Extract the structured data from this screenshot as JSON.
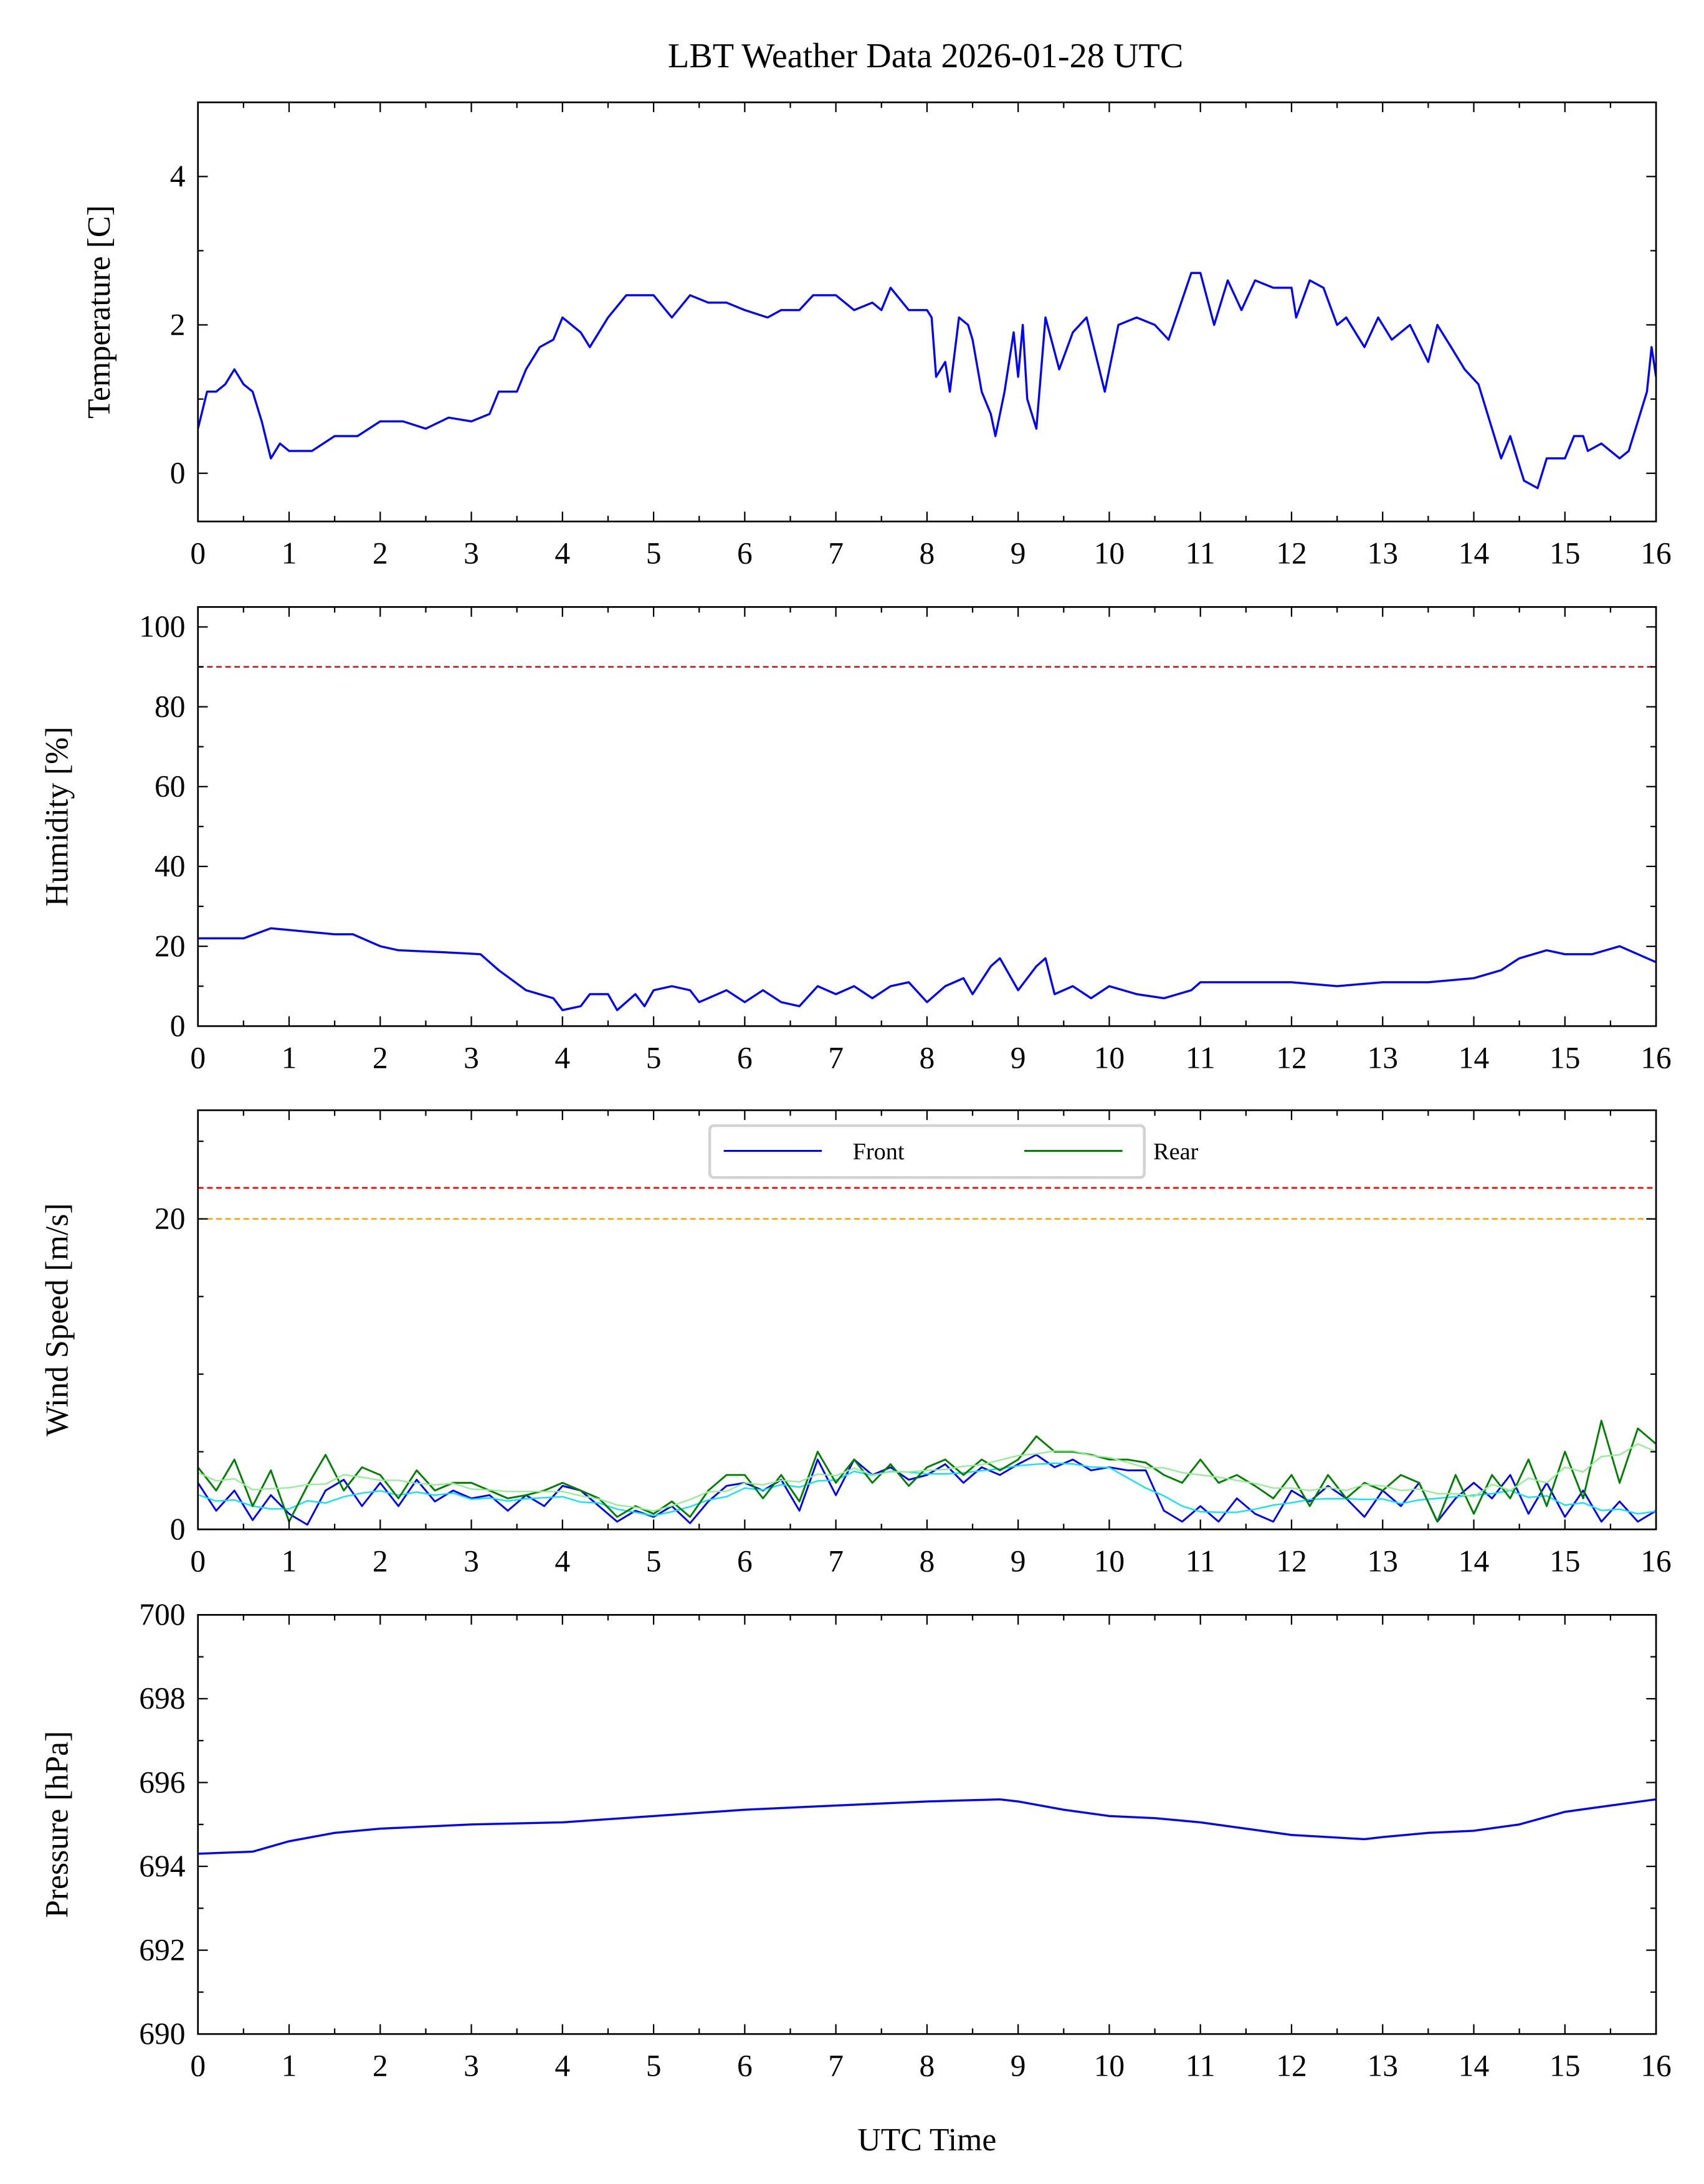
{
  "chart_data": {
    "title": "LBT Weather Data 2026-01-28 UTC",
    "xlabel": "UTC Time",
    "xlim": [
      0,
      16
    ],
    "x_ticks": [
      0,
      1,
      2,
      3,
      4,
      5,
      6,
      7,
      8,
      9,
      10,
      11,
      12,
      13,
      14,
      15,
      16
    ],
    "panels": [
      {
        "id": "temperature",
        "type": "line",
        "ylabel": "Temperature [C]",
        "ylim": [
          -0.65,
          5
        ],
        "y_ticks": [
          0,
          2,
          4
        ],
        "y_minor_step": 1,
        "series": [
          {
            "name": "Temperature",
            "color": "#0000ff",
            "x": [
              0,
              0.1,
              0.2,
              0.3,
              0.4,
              0.5,
              0.6,
              0.7,
              0.8,
              0.9,
              1.0,
              1.25,
              1.5,
              1.75,
              2.0,
              2.25,
              2.5,
              2.75,
              3.0,
              3.2,
              3.3,
              3.5,
              3.6,
              3.75,
              3.9,
              4.0,
              4.2,
              4.3,
              4.5,
              4.7,
              5.0,
              5.2,
              5.4,
              5.6,
              5.8,
              6.0,
              6.25,
              6.4,
              6.6,
              6.75,
              7.0,
              7.2,
              7.4,
              7.5,
              7.6,
              7.8,
              8.0,
              8.05,
              8.1,
              8.2,
              8.25,
              8.35,
              8.45,
              8.5,
              8.6,
              8.7,
              8.75,
              8.85,
              8.95,
              9.0,
              9.05,
              9.1,
              9.2,
              9.3,
              9.45,
              9.6,
              9.75,
              9.95,
              10.1,
              10.3,
              10.5,
              10.65,
              10.9,
              11.0,
              11.15,
              11.3,
              11.45,
              11.6,
              11.8,
              12.0,
              12.05,
              12.2,
              12.35,
              12.5,
              12.6,
              12.8,
              12.95,
              13.1,
              13.3,
              13.5,
              13.6,
              13.75,
              13.9,
              14.05,
              14.2,
              14.3,
              14.4,
              14.5,
              14.55,
              14.7,
              14.8,
              15.0,
              15.1,
              15.2,
              15.25,
              15.4,
              15.5,
              15.6,
              15.7,
              15.8,
              15.9,
              15.95,
              16.0
            ],
            "y": [
              0.6,
              1.1,
              1.1,
              1.2,
              1.4,
              1.2,
              1.1,
              0.7,
              0.2,
              0.4,
              0.3,
              0.3,
              0.5,
              0.5,
              0.7,
              0.7,
              0.6,
              0.75,
              0.7,
              0.8,
              1.1,
              1.1,
              1.4,
              1.7,
              1.8,
              2.1,
              1.9,
              1.7,
              2.1,
              2.4,
              2.4,
              2.1,
              2.4,
              2.3,
              2.3,
              2.2,
              2.1,
              2.2,
              2.2,
              2.4,
              2.4,
              2.2,
              2.3,
              2.2,
              2.5,
              2.2,
              2.2,
              2.1,
              1.3,
              1.5,
              1.1,
              2.1,
              2.0,
              1.8,
              1.1,
              0.8,
              0.5,
              1.1,
              1.9,
              1.3,
              2.0,
              1.0,
              0.6,
              2.1,
              1.4,
              1.9,
              2.1,
              1.1,
              2.0,
              2.1,
              2.0,
              1.8,
              2.7,
              2.7,
              2.0,
              2.6,
              2.2,
              2.6,
              2.5,
              2.5,
              2.1,
              2.6,
              2.5,
              2.0,
              2.1,
              1.7,
              2.1,
              1.8,
              2.0,
              1.5,
              2.0,
              1.7,
              1.4,
              1.2,
              0.6,
              0.2,
              0.5,
              0.1,
              -0.1,
              -0.2,
              0.2,
              0.2,
              0.5,
              0.5,
              0.3,
              0.4,
              0.3,
              0.2,
              0.3,
              0.7,
              1.1,
              1.7,
              1.3
            ]
          }
        ],
        "hlines": []
      },
      {
        "id": "humidity",
        "type": "line",
        "ylabel": "Humidity [%]",
        "ylim": [
          0,
          105
        ],
        "y_ticks": [
          0,
          20,
          40,
          60,
          80,
          100
        ],
        "y_minor_step": 10,
        "series": [
          {
            "name": "Humidity",
            "color": "#0000ff",
            "x": [
              0,
              0.5,
              0.8,
              1.5,
              1.7,
              2.0,
              2.2,
              2.7,
              3.1,
              3.3,
              3.6,
              3.9,
              4.0,
              4.2,
              4.3,
              4.5,
              4.6,
              4.8,
              4.9,
              5.0,
              5.2,
              5.4,
              5.5,
              5.8,
              6.0,
              6.2,
              6.4,
              6.6,
              6.8,
              7.0,
              7.2,
              7.4,
              7.6,
              7.8,
              8.0,
              8.2,
              8.4,
              8.5,
              8.7,
              8.8,
              9.0,
              9.2,
              9.3,
              9.4,
              9.6,
              9.8,
              10.0,
              10.3,
              10.6,
              10.9,
              11.0,
              11.5,
              12.0,
              12.5,
              13.0,
              13.5,
              14.0,
              14.3,
              14.5,
              14.8,
              15.0,
              15.3,
              15.6,
              16.0
            ],
            "y": [
              22,
              22,
              24.5,
              23,
              23,
              20,
              19,
              18.5,
              18,
              14,
              9,
              7,
              4,
              5,
              8,
              8,
              4,
              8,
              5,
              9,
              10,
              9,
              6,
              9,
              6,
              9,
              6,
              5,
              10,
              8,
              10,
              7,
              10,
              11,
              6,
              10,
              12,
              8,
              15,
              17,
              9,
              15,
              17,
              8,
              10,
              7,
              10,
              8,
              7,
              9,
              11,
              11,
              11,
              10,
              11,
              11,
              12,
              14,
              17,
              19,
              18,
              18,
              20,
              16
            ]
          }
        ],
        "hlines": [
          {
            "y": 90,
            "color": "#e31a1c",
            "style": "dashed"
          }
        ]
      },
      {
        "id": "wind",
        "type": "line",
        "ylabel": "Wind Speed [m/s]",
        "ylim": [
          0,
          27
        ],
        "y_ticks": [
          0,
          20
        ],
        "y_minor_step": 5,
        "legend": {
          "placement": "top-center",
          "entries": [
            "Front",
            "Rear"
          ]
        },
        "series": [
          {
            "name": "Front",
            "color": "#0000ff",
            "smooth_color": "#00e5ff",
            "y": [
              3,
              1.2,
              2.5,
              0.6,
              2.2,
              1,
              0.3,
              2.5,
              3.2,
              1.5,
              3,
              1.5,
              3.2,
              1.8,
              2.5,
              2,
              2.2,
              1.2,
              2.2,
              1.5,
              2.8,
              2.5,
              1.5,
              0.5,
              1.2,
              0.8,
              1.5,
              0.4,
              1.8,
              2.8,
              3,
              2.5,
              3.2,
              1.2,
              4.5,
              2.2,
              4.5,
              3.5,
              4,
              3.2,
              3.5,
              4.2,
              3,
              4,
              3.5,
              4.2,
              4.8,
              4,
              4.5,
              3.8,
              4,
              3.8,
              3.8,
              1.2,
              0.5,
              1.5,
              0.5,
              2,
              1,
              0.5,
              2.5,
              1.8,
              2.8,
              2,
              0.8,
              2.5,
              1.5,
              3,
              0.5,
              2,
              3,
              2,
              3.5,
              1,
              3,
              0.8,
              2.5,
              0.5,
              1.8,
              0.5,
              1.2
            ]
          },
          {
            "name": "Rear",
            "color": "#008000",
            "smooth_color": "#90ee90",
            "y": [
              4,
              2.5,
              4.5,
              1.5,
              3.8,
              0.5,
              2.8,
              4.8,
              2.5,
              4,
              3.5,
              2,
              3.8,
              2.5,
              3,
              3,
              2.5,
              2,
              2.2,
              2.5,
              3,
              2.5,
              2,
              0.8,
              1.5,
              1,
              1.8,
              0.8,
              2.5,
              3.5,
              3.5,
              2,
              3.5,
              1.8,
              5,
              3,
              4.5,
              3,
              4.2,
              2.8,
              4,
              4.5,
              3.5,
              4.5,
              3.8,
              4.5,
              6,
              5,
              5,
              4.8,
              4.5,
              4.5,
              4.3,
              3.5,
              3,
              4.5,
              3,
              3.5,
              2.8,
              2,
              3.5,
              1.5,
              3.5,
              2,
              3,
              2.5,
              3.5,
              3,
              0.5,
              3.5,
              1,
              3.5,
              2,
              4.5,
              1.5,
              5,
              2,
              7,
              3,
              6.5,
              5.5
            ]
          }
        ],
        "hlines": [
          {
            "y": 22,
            "color": "#ff0000",
            "style": "dashed"
          },
          {
            "y": 20,
            "color": "#ffa500",
            "style": "dashed"
          }
        ]
      },
      {
        "id": "pressure",
        "type": "line",
        "ylabel": "Pressure [hPa]",
        "ylim": [
          690,
          700
        ],
        "y_ticks": [
          690,
          692,
          694,
          696,
          698,
          700
        ],
        "y_minor_step": 1,
        "series": [
          {
            "name": "Pressure",
            "color": "#0000ff",
            "x": [
              0,
              0.6,
              1.0,
              1.5,
              2.0,
              3.0,
              4.0,
              5.0,
              6.0,
              7.0,
              8.0,
              8.8,
              9.0,
              9.5,
              10.0,
              10.5,
              11.0,
              11.5,
              12.0,
              12.8,
              13.0,
              13.5,
              14.0,
              14.5,
              15.0,
              15.5,
              16.0
            ],
            "y": [
              694.3,
              694.35,
              694.6,
              694.8,
              694.9,
              695.0,
              695.05,
              695.2,
              695.35,
              695.45,
              695.55,
              695.6,
              695.55,
              695.35,
              695.2,
              695.15,
              695.05,
              694.9,
              694.75,
              694.65,
              694.7,
              694.8,
              694.85,
              695.0,
              695.3,
              695.45,
              695.6
            ]
          }
        ],
        "hlines": []
      }
    ]
  }
}
